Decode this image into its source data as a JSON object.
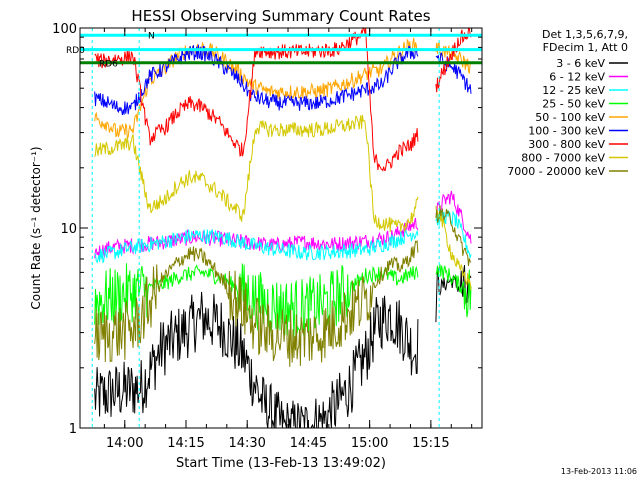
{
  "chart_data": {
    "type": "line",
    "title": "HESSI Observing Summary Count Rates",
    "xlabel": "Start Time (13-Feb-13 13:49:02)",
    "ylabel": "Count Rate (s⁻¹ detector⁻¹)",
    "yscale": "log",
    "ylim": [
      1,
      100
    ],
    "xlim_minutes_after_start": [
      0,
      98.5
    ],
    "x_ticks": [
      {
        "label": "14:00",
        "min": 10.97
      },
      {
        "label": "14:15",
        "min": 25.97
      },
      {
        "label": "14:30",
        "min": 40.97
      },
      {
        "label": "14:45",
        "min": 55.97
      },
      {
        "label": "15:00",
        "min": 70.97
      },
      {
        "label": "15:15",
        "min": 85.97
      }
    ],
    "y_ticks": [
      {
        "label": "1",
        "value": 1
      },
      {
        "label": "10",
        "value": 10
      },
      {
        "label": "100",
        "value": 100
      }
    ],
    "legend_header": [
      "Det 1,3,5,6,7,9,",
      "FDecim 1, Att 0"
    ],
    "legend_position": "right",
    "flags": [
      {
        "label": "RD0",
        "value": 78,
        "color": "#00ffff"
      },
      {
        "label": "N",
        "value": 92,
        "color": "#00ffff"
      },
      {
        "label": "RD6",
        "value": 67,
        "color": "#008000"
      }
    ],
    "night_boundaries_min": [
      3.0,
      14.5,
      88.0
    ],
    "data_gaps_min": [
      [
        0,
        3.5
      ],
      [
        83,
        87
      ],
      [
        96,
        98.5
      ]
    ],
    "series": [
      {
        "name": "3 - 6 keV",
        "color": "#000000",
        "points": [
          [
            3,
            1.4
          ],
          [
            8,
            1.5
          ],
          [
            15,
            1.6
          ],
          [
            20,
            2.5
          ],
          [
            25,
            3.0
          ],
          [
            30,
            3.6
          ],
          [
            35,
            3.2
          ],
          [
            40,
            2.3
          ],
          [
            45,
            1.3
          ],
          [
            50,
            1.0
          ],
          [
            55,
            1.0
          ],
          [
            60,
            1.1
          ],
          [
            63,
            1.3
          ],
          [
            66,
            1.6
          ],
          [
            70,
            2.3
          ],
          [
            73,
            3.4
          ],
          [
            76,
            3.7
          ],
          [
            79,
            3.1
          ],
          [
            82,
            2.4
          ],
          [
            88,
            5.0
          ],
          [
            91,
            5.5
          ],
          [
            94,
            4.8
          ],
          [
            96,
            4.0
          ]
        ]
      },
      {
        "name": "6 - 12 keV",
        "color": "#ff00ff",
        "points": [
          [
            3,
            7.5
          ],
          [
            8,
            8.0
          ],
          [
            13,
            8.2
          ],
          [
            20,
            8.5
          ],
          [
            28,
            9.0
          ],
          [
            35,
            8.8
          ],
          [
            42,
            8.4
          ],
          [
            48,
            8.2
          ],
          [
            55,
            8.5
          ],
          [
            62,
            8.3
          ],
          [
            70,
            8.6
          ],
          [
            76,
            9.0
          ],
          [
            82,
            10.5
          ],
          [
            86,
            11.0
          ],
          [
            89,
            13.5
          ],
          [
            91,
            14.5
          ],
          [
            93,
            12.0
          ],
          [
            96,
            8.5
          ]
        ]
      },
      {
        "name": "12 - 25 keV",
        "color": "#00ffff",
        "points": [
          [
            3,
            7.2
          ],
          [
            8,
            7.5
          ],
          [
            13,
            8.0
          ],
          [
            20,
            8.5
          ],
          [
            28,
            9.2
          ],
          [
            35,
            9.0
          ],
          [
            42,
            8.2
          ],
          [
            48,
            7.8
          ],
          [
            55,
            7.5
          ],
          [
            62,
            7.6
          ],
          [
            70,
            7.8
          ],
          [
            76,
            8.5
          ],
          [
            82,
            9.5
          ],
          [
            86,
            10.5
          ],
          [
            89,
            11.5
          ],
          [
            92,
            11.0
          ],
          [
            94,
            9.0
          ],
          [
            96,
            7.0
          ]
        ]
      },
      {
        "name": "25 - 50 keV",
        "color": "#00ff00",
        "points": [
          [
            3,
            4.3
          ],
          [
            8,
            4.5
          ],
          [
            13,
            4.8
          ],
          [
            20,
            5.2
          ],
          [
            25,
            5.8
          ],
          [
            30,
            6.0
          ],
          [
            35,
            5.6
          ],
          [
            40,
            4.8
          ],
          [
            45,
            4.2
          ],
          [
            50,
            4.0
          ],
          [
            55,
            4.0
          ],
          [
            60,
            4.2
          ],
          [
            65,
            4.8
          ],
          [
            70,
            5.8
          ],
          [
            74,
            6.0
          ],
          [
            78,
            5.5
          ],
          [
            82,
            6.0
          ],
          [
            87,
            6.3
          ],
          [
            90,
            5.9
          ],
          [
            93,
            5.2
          ],
          [
            96,
            4.6
          ]
        ]
      },
      {
        "name": "50 - 100 keV",
        "color": "#ffa500",
        "points": [
          [
            3,
            36
          ],
          [
            7,
            33
          ],
          [
            9,
            30
          ],
          [
            13,
            31
          ],
          [
            17,
            55
          ],
          [
            20,
            60
          ],
          [
            23,
            70
          ],
          [
            26,
            77
          ],
          [
            29,
            80
          ],
          [
            32,
            77
          ],
          [
            36,
            68
          ],
          [
            39,
            60
          ],
          [
            42,
            52
          ],
          [
            46,
            48
          ],
          [
            50,
            48
          ],
          [
            54,
            48
          ],
          [
            58,
            48
          ],
          [
            62,
            50
          ],
          [
            67,
            55
          ],
          [
            71,
            60
          ],
          [
            74,
            62
          ],
          [
            77,
            73
          ],
          [
            80,
            80
          ],
          [
            82,
            82
          ],
          [
            84,
            79
          ],
          [
            87,
            80
          ],
          [
            89,
            77
          ],
          [
            92,
            72
          ],
          [
            94,
            68
          ],
          [
            96,
            63
          ]
        ]
      },
      {
        "name": "100 - 300 keV",
        "color": "#0000ff",
        "points": [
          [
            3,
            45
          ],
          [
            7,
            42
          ],
          [
            9,
            40
          ],
          [
            13,
            40
          ],
          [
            17,
            57
          ],
          [
            20,
            62
          ],
          [
            23,
            68
          ],
          [
            26,
            74
          ],
          [
            29,
            76
          ],
          [
            32,
            72
          ],
          [
            36,
            62
          ],
          [
            39,
            55
          ],
          [
            42,
            46
          ],
          [
            46,
            43
          ],
          [
            50,
            42
          ],
          [
            54,
            42
          ],
          [
            58,
            42
          ],
          [
            62,
            44
          ],
          [
            67,
            47
          ],
          [
            71,
            50
          ],
          [
            74,
            52
          ],
          [
            77,
            65
          ],
          [
            80,
            74
          ],
          [
            82,
            76
          ],
          [
            84,
            74
          ],
          [
            87,
            73
          ],
          [
            89,
            68
          ],
          [
            92,
            62
          ],
          [
            94,
            55
          ],
          [
            96,
            48
          ]
        ]
      },
      {
        "name": "300 - 800 keV",
        "color": "#ff0000",
        "points": [
          [
            3,
            72
          ],
          [
            5,
            68
          ],
          [
            8,
            70
          ],
          [
            11,
            71
          ],
          [
            13,
            73
          ],
          [
            17,
            28
          ],
          [
            21,
            32
          ],
          [
            24,
            38
          ],
          [
            27,
            42
          ],
          [
            30,
            40
          ],
          [
            34,
            34
          ],
          [
            37,
            28
          ],
          [
            40,
            24
          ],
          [
            43,
            78
          ],
          [
            47,
            76
          ],
          [
            51,
            76
          ],
          [
            55,
            76
          ],
          [
            59,
            77
          ],
          [
            63,
            78
          ],
          [
            66,
            85
          ],
          [
            68,
            90
          ],
          [
            70,
            96
          ],
          [
            72,
            22
          ],
          [
            75,
            20
          ],
          [
            78,
            24
          ],
          [
            81,
            26
          ],
          [
            83,
            30
          ],
          [
            85,
            34
          ],
          [
            87,
            50
          ],
          [
            91,
            74
          ],
          [
            93,
            88
          ],
          [
            96,
            96
          ]
        ]
      },
      {
        "name": "800 - 7000 keV",
        "color": "#d4c800",
        "points": [
          [
            3,
            24
          ],
          [
            7,
            25
          ],
          [
            11,
            26
          ],
          [
            13,
            27
          ],
          [
            17,
            12.5
          ],
          [
            21,
            14
          ],
          [
            24,
            16.5
          ],
          [
            27,
            18
          ],
          [
            30,
            17.5
          ],
          [
            34,
            15
          ],
          [
            37,
            13
          ],
          [
            40,
            11.5
          ],
          [
            43,
            32
          ],
          [
            47,
            31
          ],
          [
            51,
            31
          ],
          [
            55,
            31
          ],
          [
            59,
            31
          ],
          [
            63,
            32
          ],
          [
            67,
            33
          ],
          [
            70,
            34
          ],
          [
            72,
            11
          ],
          [
            75,
            10.5
          ],
          [
            78,
            10.0
          ],
          [
            81,
            11
          ],
          [
            83,
            13.5
          ],
          [
            85,
            14.5
          ],
          [
            88,
            12
          ],
          [
            91,
            7.5
          ],
          [
            93,
            6.2
          ],
          [
            96,
            5.2
          ]
        ]
      },
      {
        "name": "7000 - 20000 keV",
        "color": "#808000",
        "points": [
          [
            3,
            2.8
          ],
          [
            6,
            2.9
          ],
          [
            9,
            3.0
          ],
          [
            13,
            3.1
          ],
          [
            17,
            4.2
          ],
          [
            20,
            5.5
          ],
          [
            24,
            6.8
          ],
          [
            27,
            7.5
          ],
          [
            30,
            7.2
          ],
          [
            33,
            6.2
          ],
          [
            37,
            4.8
          ],
          [
            40,
            4.0
          ],
          [
            43,
            3.3
          ],
          [
            46,
            3.0
          ],
          [
            50,
            2.9
          ],
          [
            54,
            2.8
          ],
          [
            58,
            2.9
          ],
          [
            62,
            3.2
          ],
          [
            66,
            3.8
          ],
          [
            70,
            4.4
          ],
          [
            73,
            5.6
          ],
          [
            76,
            6.6
          ],
          [
            79,
            6.4
          ],
          [
            82,
            7.8
          ],
          [
            85,
            9.5
          ],
          [
            88,
            12.0
          ],
          [
            91,
            11.0
          ],
          [
            93,
            8.5
          ],
          [
            96,
            6.5
          ]
        ]
      }
    ]
  },
  "footer": {
    "date_stamp": "13-Feb-2013 11:06"
  }
}
